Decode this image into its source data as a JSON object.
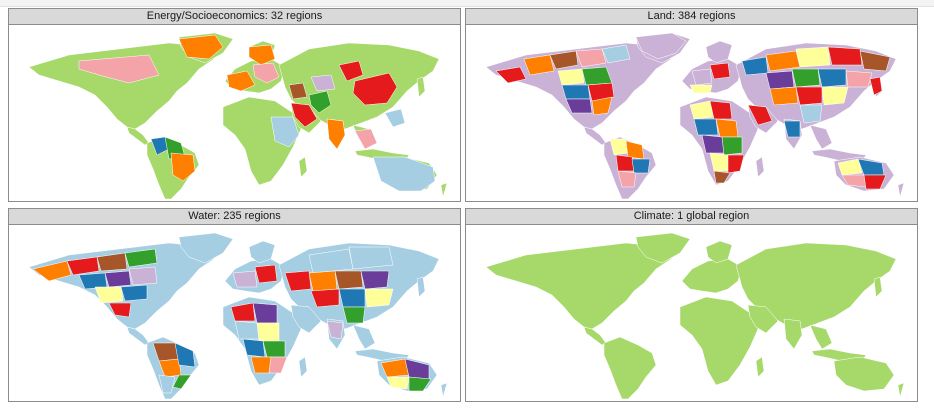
{
  "panels": [
    {
      "title": "Energy/Socioeconomics: 32 regions",
      "scheme": "energy"
    },
    {
      "title": "Land: 384 regions",
      "scheme": "land"
    },
    {
      "title": "Water: 235 regions",
      "scheme": "water"
    },
    {
      "title": "Climate: 1 global region",
      "scheme": "climate"
    }
  ],
  "colors": {
    "green": "#a6d96a",
    "orange": "#ff7f00",
    "pink": "#f4a3a8",
    "red": "#e41a1c",
    "blue": "#1f78b4",
    "lightblue": "#a6cee3",
    "purple": "#6a3d9a",
    "lavender": "#cab2d6",
    "brown": "#a65628",
    "yellow": "#ffff99",
    "darkgreen": "#33a02c",
    "mint": "#b2df8a"
  }
}
